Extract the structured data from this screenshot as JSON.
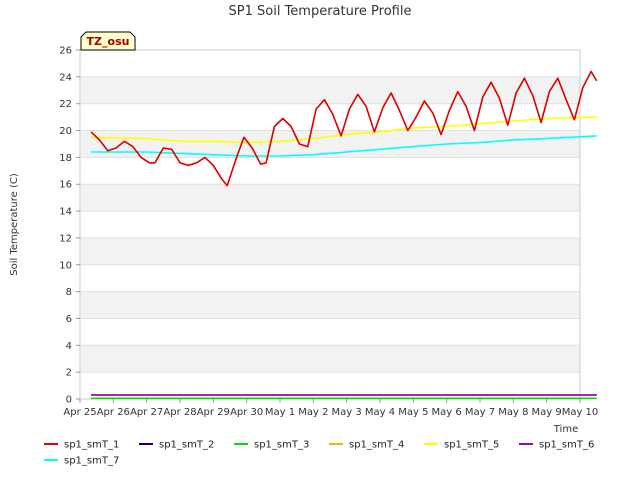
{
  "chart_data": {
    "type": "line",
    "title": "SP1 Soil Temperature Profile",
    "xlabel": "Time",
    "ylabel": "Soil Temperature (C)",
    "ylim": [
      0,
      26
    ],
    "yticks": [
      0,
      2,
      4,
      6,
      8,
      10,
      12,
      14,
      16,
      18,
      20,
      22,
      24,
      26
    ],
    "xlim": [
      "2025-04-25",
      "2025-05-10"
    ],
    "xticks": [
      {
        "value": "2025-04-25",
        "label": "Apr 25"
      },
      {
        "value": "2025-04-26",
        "label": "Apr 26"
      },
      {
        "value": "2025-04-27",
        "label": "Apr 27"
      },
      {
        "value": "2025-04-28",
        "label": "Apr 28"
      },
      {
        "value": "2025-04-29",
        "label": "Apr 29"
      },
      {
        "value": "2025-04-30",
        "label": "Apr 30"
      },
      {
        "value": "2025-05-01",
        "label": "May 1"
      },
      {
        "value": "2025-05-02",
        "label": "May 2"
      },
      {
        "value": "2025-05-03",
        "label": "May 3"
      },
      {
        "value": "2025-05-04",
        "label": "May 4"
      },
      {
        "value": "2025-05-05",
        "label": "May 5"
      },
      {
        "value": "2025-05-06",
        "label": "May 6"
      },
      {
        "value": "2025-05-07",
        "label": "May 7"
      },
      {
        "value": "2025-05-08",
        "label": "May 8"
      },
      {
        "value": "2025-05-09",
        "label": "May 9"
      },
      {
        "value": "2025-05-10",
        "label": "May 10"
      }
    ],
    "badge": "TZ_osu",
    "grid": "horizontal bands",
    "legend_position": "bottom",
    "series": [
      {
        "name": "sp1_smT_1",
        "color": "#dd0000",
        "points": [
          [
            "2025-04-25 08:00",
            19.9
          ],
          [
            "2025-04-25 14:00",
            19.3
          ],
          [
            "2025-04-25 20:00",
            18.5
          ],
          [
            "2025-04-26 02:00",
            18.7
          ],
          [
            "2025-04-26 08:00",
            19.2
          ],
          [
            "2025-04-26 14:00",
            18.8
          ],
          [
            "2025-04-26 20:00",
            18.0
          ],
          [
            "2025-04-27 02:00",
            17.6
          ],
          [
            "2025-04-27 06:00",
            17.6
          ],
          [
            "2025-04-27 12:00",
            18.7
          ],
          [
            "2025-04-27 18:00",
            18.6
          ],
          [
            "2025-04-28 00:00",
            17.6
          ],
          [
            "2025-04-28 06:00",
            17.4
          ],
          [
            "2025-04-28 12:00",
            17.6
          ],
          [
            "2025-04-28 18:00",
            18.0
          ],
          [
            "2025-04-29 00:00",
            17.4
          ],
          [
            "2025-04-29 06:00",
            16.4
          ],
          [
            "2025-04-29 10:00",
            15.9
          ],
          [
            "2025-04-29 16:00",
            17.8
          ],
          [
            "2025-04-29 22:00",
            19.5
          ],
          [
            "2025-04-30 04:00",
            18.7
          ],
          [
            "2025-04-30 10:00",
            17.5
          ],
          [
            "2025-04-30 14:00",
            17.6
          ],
          [
            "2025-04-30 20:00",
            20.3
          ],
          [
            "2025-05-01 02:00",
            20.9
          ],
          [
            "2025-05-01 08:00",
            20.3
          ],
          [
            "2025-05-01 14:00",
            19.0
          ],
          [
            "2025-05-01 20:00",
            18.8
          ],
          [
            "2025-05-02 02:00",
            21.6
          ],
          [
            "2025-05-02 08:00",
            22.3
          ],
          [
            "2025-05-02 14:00",
            21.2
          ],
          [
            "2025-05-02 20:00",
            19.6
          ],
          [
            "2025-05-03 02:00",
            21.6
          ],
          [
            "2025-05-03 08:00",
            22.7
          ],
          [
            "2025-05-03 14:00",
            21.8
          ],
          [
            "2025-05-03 20:00",
            19.9
          ],
          [
            "2025-05-04 02:00",
            21.7
          ],
          [
            "2025-05-04 08:00",
            22.8
          ],
          [
            "2025-05-04 14:00",
            21.5
          ],
          [
            "2025-05-04 20:00",
            20.0
          ],
          [
            "2025-05-05 02:00",
            21.0
          ],
          [
            "2025-05-05 08:00",
            22.2
          ],
          [
            "2025-05-05 14:00",
            21.3
          ],
          [
            "2025-05-05 20:00",
            19.7
          ],
          [
            "2025-05-06 02:00",
            21.5
          ],
          [
            "2025-05-06 08:00",
            22.9
          ],
          [
            "2025-05-06 14:00",
            21.8
          ],
          [
            "2025-05-06 20:00",
            20.0
          ],
          [
            "2025-05-07 02:00",
            22.5
          ],
          [
            "2025-05-07 08:00",
            23.6
          ],
          [
            "2025-05-07 14:00",
            22.4
          ],
          [
            "2025-05-07 20:00",
            20.4
          ],
          [
            "2025-05-08 02:00",
            22.8
          ],
          [
            "2025-05-08 08:00",
            23.9
          ],
          [
            "2025-05-08 14:00",
            22.6
          ],
          [
            "2025-05-08 20:00",
            20.6
          ],
          [
            "2025-05-09 02:00",
            22.9
          ],
          [
            "2025-05-09 08:00",
            23.9
          ],
          [
            "2025-05-09 14:00",
            22.3
          ],
          [
            "2025-05-09 20:00",
            20.8
          ],
          [
            "2025-05-10 02:00",
            23.2
          ],
          [
            "2025-05-10 08:00",
            24.4
          ],
          [
            "2025-05-10 12:00",
            23.7
          ]
        ]
      },
      {
        "name": "sp1_smT_2",
        "color": "#0000aa",
        "points": [
          [
            "2025-04-25 08:00",
            0.3
          ],
          [
            "2025-05-10 12:00",
            0.3
          ]
        ]
      },
      {
        "name": "sp1_smT_3",
        "color": "#00dd00",
        "points": [
          [
            "2025-04-25 08:00",
            0.05
          ],
          [
            "2025-05-10 12:00",
            0.05
          ]
        ]
      },
      {
        "name": "sp1_smT_4",
        "color": "#ffaa00",
        "points": [
          [
            "2025-04-25 08:00",
            0.3
          ],
          [
            "2025-05-10 12:00",
            0.3
          ]
        ]
      },
      {
        "name": "sp1_smT_5",
        "color": "#ffff00",
        "points": [
          [
            "2025-04-25 08:00",
            19.5
          ],
          [
            "2025-04-27 00:00",
            19.4
          ],
          [
            "2025-04-28 00:00",
            19.2
          ],
          [
            "2025-04-29 00:00",
            19.2
          ],
          [
            "2025-04-30 00:00",
            19.1
          ],
          [
            "2025-05-01 00:00",
            19.2
          ],
          [
            "2025-05-02 00:00",
            19.4
          ],
          [
            "2025-05-03 00:00",
            19.7
          ],
          [
            "2025-05-04 00:00",
            19.9
          ],
          [
            "2025-05-05 00:00",
            20.2
          ],
          [
            "2025-05-06 00:00",
            20.3
          ],
          [
            "2025-05-07 00:00",
            20.5
          ],
          [
            "2025-05-08 00:00",
            20.7
          ],
          [
            "2025-05-09 00:00",
            20.9
          ],
          [
            "2025-05-10 12:00",
            21.0
          ]
        ]
      },
      {
        "name": "sp1_smT_6",
        "color": "#9900cc",
        "points": [
          [
            "2025-04-25 08:00",
            0.3
          ],
          [
            "2025-05-10 12:00",
            0.3
          ]
        ]
      },
      {
        "name": "sp1_smT_7",
        "color": "#00ffff",
        "points": [
          [
            "2025-04-25 08:00",
            18.4
          ],
          [
            "2025-04-27 00:00",
            18.4
          ],
          [
            "2025-04-28 00:00",
            18.3
          ],
          [
            "2025-04-29 00:00",
            18.2
          ],
          [
            "2025-04-30 00:00",
            18.1
          ],
          [
            "2025-05-01 00:00",
            18.1
          ],
          [
            "2025-05-02 00:00",
            18.2
          ],
          [
            "2025-05-03 00:00",
            18.4
          ],
          [
            "2025-05-04 00:00",
            18.6
          ],
          [
            "2025-05-05 00:00",
            18.8
          ],
          [
            "2025-05-06 00:00",
            19.0
          ],
          [
            "2025-05-07 00:00",
            19.1
          ],
          [
            "2025-05-08 00:00",
            19.3
          ],
          [
            "2025-05-09 00:00",
            19.4
          ],
          [
            "2025-05-10 12:00",
            19.6
          ]
        ]
      }
    ]
  }
}
